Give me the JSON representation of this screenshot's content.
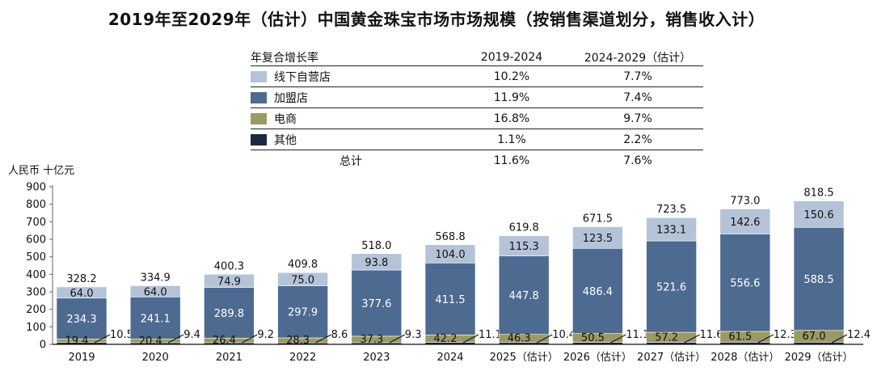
{
  "title": "2019年至2029年（估计）中国黄金珠宝市场市场规模（按销售渠道划分，销售收入计）",
  "cagr_table": {
    "header": [
      "年复合增长率",
      "2019-2024",
      "2024-2029（估计）"
    ],
    "rows": [
      {
        "label": "线下自营店",
        "v1": "10.2%",
        "v2": "7.7%"
      },
      {
        "label": "加盟店",
        "v1": "11.9%",
        "v2": "7.4%"
      },
      {
        "label": "电商",
        "v1": "16.8%",
        "v2": "9.7%"
      },
      {
        "label": "其他",
        "v1": "1.1%",
        "v2": "2.2%"
      },
      {
        "label": "总计",
        "v1": "11.6%",
        "v2": "7.6%"
      }
    ]
  },
  "chart_data": {
    "type": "bar",
    "stacked": true,
    "categories": [
      "2019",
      "2020",
      "2021",
      "2022",
      "2023",
      "2024",
      "2025（估计）",
      "2026（估计）",
      "2027（估计）",
      "2028（估计）",
      "2029（估计）"
    ],
    "ylabel": "人民币 十亿元",
    "ylim": [
      0,
      900
    ],
    "yticks": [
      0,
      100,
      200,
      300,
      400,
      500,
      600,
      700,
      800,
      900
    ],
    "grid": false,
    "series": [
      {
        "name": "其他",
        "color": "#1d2941",
        "values": [
          10.5,
          9.4,
          9.2,
          8.6,
          9.3,
          11.1,
          10.4,
          11.1,
          11.6,
          12.3,
          12.4
        ]
      },
      {
        "name": "电商",
        "color": "#9b9a64",
        "values": [
          19.4,
          20.4,
          26.4,
          28.3,
          37.3,
          42.2,
          46.3,
          50.5,
          57.2,
          61.5,
          67.0
        ]
      },
      {
        "name": "加盟店",
        "color": "#4d6a91",
        "values": [
          234.3,
          241.1,
          289.8,
          297.9,
          377.6,
          411.5,
          447.8,
          486.4,
          521.6,
          556.6,
          588.5
        ]
      },
      {
        "name": "线下自营店",
        "color": "#b5c3d8",
        "values": [
          64.0,
          64.0,
          74.9,
          75.0,
          93.8,
          104.0,
          115.3,
          123.5,
          133.1,
          142.6,
          150.6
        ]
      }
    ],
    "totals": [
      328.2,
      334.9,
      400.3,
      409.8,
      518.0,
      568.8,
      619.8,
      671.5,
      723.5,
      773.0,
      818.5
    ]
  }
}
